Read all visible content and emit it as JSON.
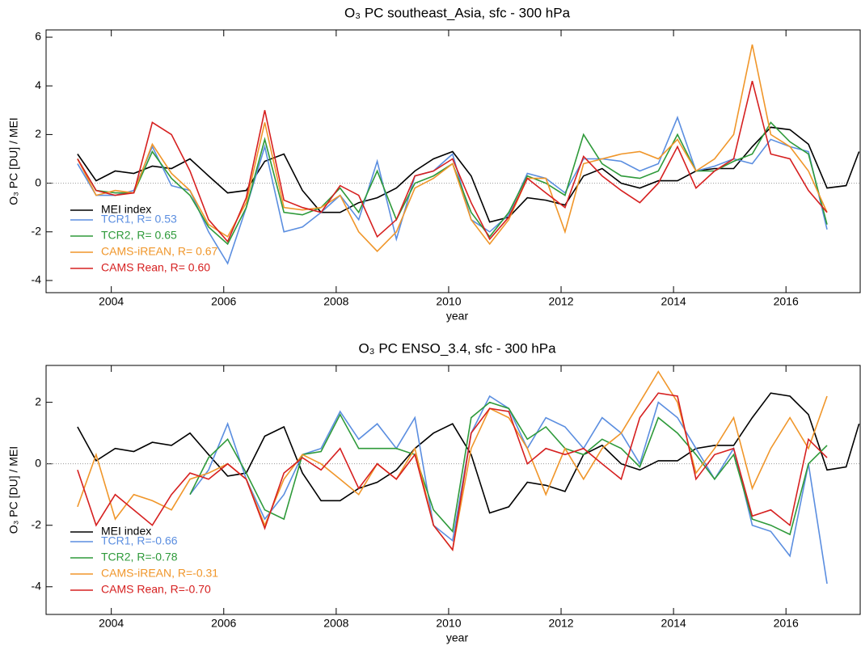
{
  "chart_data": [
    {
      "type": "line",
      "title": "O₃ PC southeast_Asia, sfc - 300 hPa",
      "xlabel": "year",
      "ylabel": "O₃ PC [DU] / MEI",
      "x": [
        2003.4,
        2003.73,
        2004.07,
        2004.4,
        2004.73,
        2005.07,
        2005.4,
        2005.73,
        2006.07,
        2006.4,
        2006.73,
        2007.07,
        2007.4,
        2007.73,
        2008.07,
        2008.4,
        2008.73,
        2009.07,
        2009.4,
        2009.73,
        2010.07,
        2010.4,
        2010.73,
        2011.07,
        2011.4,
        2011.73,
        2012.07,
        2012.4,
        2012.73,
        2013.07,
        2013.4,
        2013.73,
        2014.07,
        2014.4,
        2014.73,
        2015.07,
        2015.4,
        2015.73,
        2016.07,
        2016.4,
        2016.73,
        2017.07,
        2017.3
      ],
      "xlim": [
        2002.84,
        2017.32
      ],
      "xticks": [
        2004,
        2006,
        2008,
        2010,
        2012,
        2014,
        2016
      ],
      "ylim": [
        -4.5,
        6.3
      ],
      "yticks": [
        -4,
        -2,
        0,
        2,
        4,
        6
      ],
      "legend": "lower left",
      "series": [
        {
          "name": "MEI index",
          "color": "#000000",
          "values": [
            1.2,
            0.1,
            0.5,
            0.4,
            0.7,
            0.6,
            1.0,
            0.3,
            -0.4,
            -0.3,
            0.9,
            1.2,
            -0.3,
            -1.2,
            -1.2,
            -0.8,
            -0.6,
            -0.2,
            0.5,
            1.0,
            1.3,
            0.3,
            -1.6,
            -1.4,
            -0.6,
            -0.7,
            -0.9,
            0.3,
            0.6,
            0.0,
            -0.2,
            0.1,
            0.1,
            0.5,
            0.6,
            0.6,
            1.5,
            2.3,
            2.2,
            1.6,
            -0.2,
            -0.1,
            1.3
          ]
        },
        {
          "name": "TCR1, R= 0.53",
          "color": "#5b8ee0",
          "values": [
            0.8,
            -0.5,
            -0.5,
            -0.3,
            1.5,
            -0.1,
            -0.3,
            -2.0,
            -3.3,
            -1.0,
            1.5,
            -2.0,
            -1.8,
            -1.2,
            -0.5,
            -1.5,
            0.9,
            -2.3,
            0.3,
            0.5,
            1.2,
            -1.5,
            -2.0,
            -1.3,
            0.4,
            0.2,
            -0.4,
            1.0,
            1.0,
            0.9,
            0.5,
            0.8,
            2.7,
            0.5,
            0.7,
            1.0,
            0.8,
            1.8,
            1.5,
            1.3,
            -1.9,
            null,
            null
          ]
        },
        {
          "name": "TCR2, R= 0.65",
          "color": "#2e9a3a",
          "values": [
            1.0,
            -0.3,
            -0.4,
            -0.4,
            1.3,
            0.2,
            -0.5,
            -1.8,
            -2.5,
            -1.0,
            1.8,
            -1.2,
            -1.3,
            -1.0,
            -0.2,
            -1.2,
            0.5,
            -1.5,
            0.0,
            0.3,
            0.8,
            -1.2,
            -2.2,
            -1.2,
            0.3,
            0.0,
            -0.5,
            2.0,
            0.8,
            0.3,
            0.2,
            0.5,
            2.0,
            0.5,
            0.5,
            0.9,
            1.2,
            2.5,
            1.7,
            1.2,
            -1.7,
            null,
            null
          ]
        },
        {
          "name": "CAMS-iREAN, R= 0.67",
          "color": "#f0962a",
          "values": [
            1.0,
            -0.5,
            -0.3,
            -0.4,
            1.6,
            0.4,
            -0.3,
            -1.7,
            -2.2,
            -0.8,
            2.5,
            -1.0,
            -1.1,
            -1.0,
            -0.5,
            -2.0,
            -2.8,
            -2.0,
            -0.2,
            0.2,
            0.8,
            -1.5,
            -2.5,
            -1.5,
            0.2,
            0.2,
            -2.0,
            0.8,
            1.0,
            1.2,
            1.3,
            1.0,
            1.8,
            0.5,
            1.0,
            2.0,
            5.7,
            2.0,
            1.5,
            0.5,
            -1.2,
            null,
            null
          ]
        },
        {
          "name": "CAMS Rean, R= 0.60",
          "color": "#d62020",
          "values": [
            1.0,
            -0.3,
            -0.5,
            -0.4,
            2.5,
            2.0,
            0.5,
            -1.5,
            -2.4,
            -0.6,
            3.0,
            -0.7,
            -1.0,
            -1.2,
            -0.1,
            -0.5,
            -2.2,
            -1.5,
            0.3,
            0.5,
            1.0,
            -0.8,
            -2.3,
            -1.4,
            0.2,
            -0.4,
            -1.0,
            1.1,
            0.3,
            -0.3,
            -0.8,
            0.0,
            1.5,
            -0.2,
            0.5,
            1.0,
            4.2,
            1.2,
            1.0,
            -0.3,
            -1.2,
            null,
            null
          ]
        }
      ]
    },
    {
      "type": "line",
      "title": "O₃ PC ENSO_3.4, sfc - 300 hPa",
      "xlabel": "year",
      "ylabel": "O₃ PC [DU] / MEI",
      "x": [
        2003.4,
        2003.73,
        2004.07,
        2004.4,
        2004.73,
        2005.07,
        2005.4,
        2005.73,
        2006.07,
        2006.4,
        2006.73,
        2007.07,
        2007.4,
        2007.73,
        2008.07,
        2008.4,
        2008.73,
        2009.07,
        2009.4,
        2009.73,
        2010.07,
        2010.4,
        2010.73,
        2011.07,
        2011.4,
        2011.73,
        2012.07,
        2012.4,
        2012.73,
        2013.07,
        2013.4,
        2013.73,
        2014.07,
        2014.4,
        2014.73,
        2015.07,
        2015.4,
        2015.73,
        2016.07,
        2016.4,
        2016.73,
        2017.07,
        2017.3
      ],
      "xlim": [
        2002.84,
        2017.32
      ],
      "xticks": [
        2004,
        2006,
        2008,
        2010,
        2012,
        2014,
        2016
      ],
      "ylim": [
        -4.9,
        3.2
      ],
      "yticks": [
        -4,
        -2,
        0,
        2
      ],
      "legend": "lower left",
      "series": [
        {
          "name": "MEI index",
          "color": "#000000",
          "values": [
            1.2,
            0.1,
            0.5,
            0.4,
            0.7,
            0.6,
            1.0,
            0.3,
            -0.4,
            -0.3,
            0.9,
            1.2,
            -0.3,
            -1.2,
            -1.2,
            -0.8,
            -0.6,
            -0.2,
            0.5,
            1.0,
            1.3,
            0.3,
            -1.6,
            -1.4,
            -0.6,
            -0.7,
            -0.9,
            0.3,
            0.6,
            0.0,
            -0.2,
            0.1,
            0.1,
            0.5,
            0.6,
            0.6,
            1.5,
            2.3,
            2.2,
            1.6,
            -0.2,
            -0.1,
            1.3
          ]
        },
        {
          "name": "TCR1, R=-0.66",
          "color": "#5b8ee0",
          "values": [
            null,
            null,
            null,
            null,
            null,
            null,
            -1.0,
            -0.2,
            1.3,
            -0.5,
            -1.8,
            -1.0,
            0.3,
            0.5,
            1.7,
            0.8,
            1.3,
            0.5,
            1.5,
            -2.0,
            -2.5,
            1.0,
            2.2,
            1.8,
            0.5,
            1.5,
            1.2,
            0.5,
            1.5,
            1.0,
            0.0,
            2.0,
            1.5,
            0.5,
            -0.5,
            0.5,
            -2.0,
            -2.2,
            -3.0,
            0.0,
            -3.9,
            null,
            null
          ]
        },
        {
          "name": "TCR2, R=-0.78",
          "color": "#2e9a3a",
          "values": [
            null,
            null,
            null,
            null,
            null,
            null,
            -1.0,
            0.2,
            0.8,
            -0.3,
            -1.5,
            -1.8,
            0.3,
            0.4,
            1.6,
            0.5,
            0.5,
            0.5,
            0.3,
            -1.5,
            -2.2,
            1.5,
            2.0,
            1.8,
            0.8,
            1.2,
            0.5,
            0.3,
            0.8,
            0.5,
            -0.1,
            1.5,
            1.0,
            0.3,
            -0.5,
            0.3,
            -1.8,
            -2.0,
            -2.3,
            0.0,
            0.6,
            null,
            null
          ]
        },
        {
          "name": "CAMS-iREAN, R=-0.31",
          "color": "#f0962a",
          "values": [
            -1.4,
            0.3,
            -1.8,
            -1.0,
            -1.2,
            -1.5,
            -0.5,
            -0.3,
            0.0,
            -0.5,
            -2.0,
            -0.5,
            0.3,
            0.0,
            -0.5,
            -1.0,
            0.0,
            -0.5,
            0.5,
            -2.0,
            -2.8,
            0.5,
            1.8,
            1.5,
            0.5,
            -1.0,
            0.5,
            -0.5,
            0.5,
            1.0,
            2.0,
            3.0,
            2.0,
            -0.3,
            0.5,
            1.5,
            -0.8,
            0.5,
            1.5,
            0.5,
            2.2,
            null,
            null
          ]
        },
        {
          "name": "CAMS Rean, R=-0.70",
          "color": "#d62020",
          "values": [
            -0.2,
            -2.0,
            -1.0,
            -1.5,
            -2.0,
            -1.0,
            -0.3,
            -0.5,
            0.0,
            -0.5,
            -2.1,
            -0.3,
            0.2,
            -0.2,
            0.5,
            -0.8,
            0.0,
            -0.5,
            0.3,
            -2.0,
            -2.8,
            1.0,
            1.8,
            1.7,
            0.0,
            0.5,
            0.3,
            0.5,
            0.0,
            -0.5,
            1.5,
            2.3,
            2.2,
            -0.5,
            0.3,
            0.5,
            -1.7,
            -1.5,
            -2.0,
            0.8,
            0.2,
            null,
            null
          ]
        }
      ]
    }
  ]
}
